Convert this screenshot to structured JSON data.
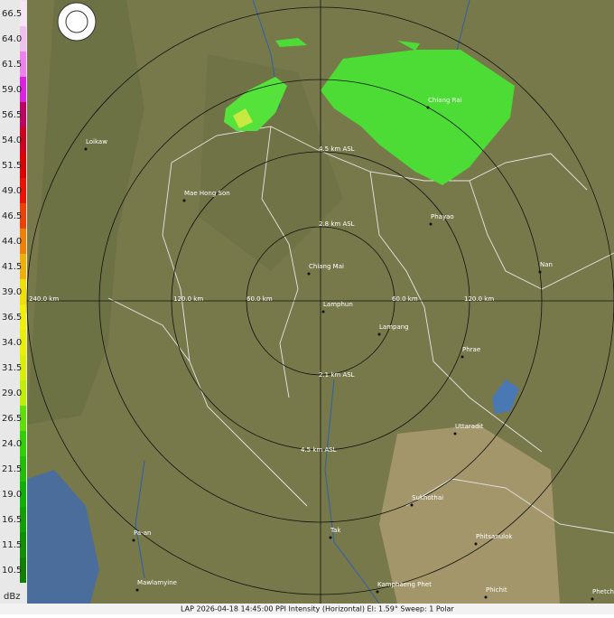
{
  "legend": {
    "labels": [
      "66.5",
      "64.0",
      "61.5",
      "59.0",
      "56.5",
      "54.0",
      "51.5",
      "49.0",
      "46.5",
      "44.0",
      "41.5",
      "39.0",
      "36.5",
      "34.0",
      "31.5",
      "29.0",
      "26.5",
      "24.0",
      "21.5",
      "19.0",
      "16.5",
      "11.5",
      "10.5"
    ],
    "unit": "dBz"
  },
  "rings": {
    "range_labels": [
      "240.0 km",
      "120.0 km",
      "60.0 km",
      "60.0 km",
      "120.0 km"
    ],
    "height_labels": [
      "4.5 km ASL",
      "2.8 km ASL",
      "2.1 km ASL",
      "4.5 km ASL"
    ]
  },
  "cities": [
    "Loikaw",
    "Mae Hong Son",
    "Chiang Rai",
    "Phayao",
    "Chiang Mai",
    "Lamphun",
    "Lampang",
    "Nan",
    "Phrae",
    "Uttaradit",
    "Sukhothai",
    "Tak",
    "Pa-an",
    "Mawlamyine",
    "Phitsanulok",
    "Kamphaeng Phet",
    "Phichit",
    "Phetchabun"
  ],
  "footer": "LAP 2026-04-18 14:45:00 PPI Intensity (Horizontal)  El: 1.59°  Sweep: 1 Polar"
}
